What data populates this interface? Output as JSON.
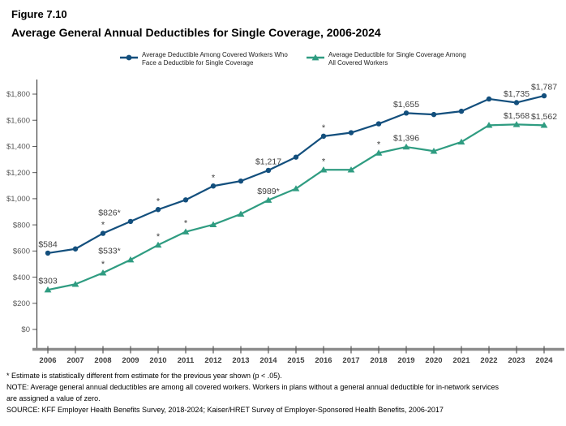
{
  "figure_label": "Figure 7.10",
  "title": "Average General Annual Deductibles for Single Coverage, 2006-2024",
  "colors": {
    "faced_series": "#134F7D",
    "all_series": "#2F9C81",
    "axis_bar": "#8C8C8C",
    "tick_text": "#595959",
    "year_text": "#404040",
    "data_label": "#404040"
  },
  "legend": [
    {
      "key": "faced",
      "label": "Average Deductible Among Covered Workers Who\nFace a Deductible for Single Coverage",
      "color": "#134F7D",
      "marker": "circle"
    },
    {
      "key": "all",
      "label": "Average Deductible for Single Coverage Among\nAll Covered Workers",
      "color": "#2F9C81",
      "marker": "triangle"
    }
  ],
  "chart_data": {
    "type": "line",
    "title": "Average General Annual Deductibles for Single Coverage, 2006-2024",
    "x": [
      2006,
      2007,
      2008,
      2009,
      2010,
      2011,
      2012,
      2013,
      2014,
      2015,
      2016,
      2017,
      2018,
      2019,
      2020,
      2021,
      2022,
      2023,
      2024
    ],
    "x_tick_labels": [
      "2006",
      "2007",
      "2008",
      "2009",
      "2010",
      "2011",
      "2012",
      "2013",
      "2014",
      "2015",
      "2016",
      "2017",
      "2018",
      "2019",
      "2020",
      "2021",
      "2022",
      "2023",
      "2024"
    ],
    "y_axis": {
      "min": 0,
      "max": 1800,
      "step": 200
    },
    "y_tick_labels": [
      "$0",
      "$200",
      "$400",
      "$600",
      "$800",
      "$1,000",
      "$1,200",
      "$1,400",
      "$1,600",
      "$1,800"
    ],
    "grid": "off",
    "legend_position": "top-center",
    "series": [
      {
        "key": "faced",
        "name": "Average Deductible Among Covered Workers Who Face a Deductible for Single Coverage",
        "color": "#134F7D",
        "marker": "circle",
        "values": [
          584,
          616,
          735,
          826,
          917,
          991,
          1097,
          1135,
          1217,
          1318,
          1478,
          1505,
          1573,
          1655,
          1644,
          1669,
          1763,
          1735,
          1787
        ]
      },
      {
        "key": "all",
        "name": "Average Deductible for Single Coverage Among All Covered Workers",
        "color": "#2F9C81",
        "marker": "triangle",
        "values": [
          303,
          346,
          433,
          533,
          646,
          747,
          802,
          883,
          989,
          1077,
          1221,
          1221,
          1350,
          1396,
          1364,
          1434,
          1562,
          1568,
          1562
        ]
      }
    ],
    "point_labels": [
      {
        "series": "faced",
        "year": 2006,
        "text": "$584",
        "dx": 0
      },
      {
        "series": "faced",
        "year": 2009,
        "text": "$826*",
        "dx": -26
      },
      {
        "series": "faced",
        "year": 2014,
        "text": "$1,217",
        "dx": 0
      },
      {
        "series": "faced",
        "year": 2019,
        "text": "$1,655",
        "dx": 0
      },
      {
        "series": "faced",
        "year": 2023,
        "text": "$1,735",
        "dx": 0
      },
      {
        "series": "faced",
        "year": 2024,
        "text": "$1,787",
        "dx": 0
      },
      {
        "series": "all",
        "year": 2006,
        "text": "$303",
        "dx": 0
      },
      {
        "series": "all",
        "year": 2009,
        "text": "$533*",
        "dx": -26
      },
      {
        "series": "all",
        "year": 2014,
        "text": "$989*",
        "dx": 0
      },
      {
        "series": "all",
        "year": 2019,
        "text": "$1,396",
        "dx": 0
      },
      {
        "series": "all",
        "year": 2023,
        "text": "$1,568",
        "dx": 0
      },
      {
        "series": "all",
        "year": 2024,
        "text": "$1,562",
        "dx": 0
      }
    ],
    "significance_asterisks": [
      {
        "series": "faced",
        "years": [
          2008,
          2010,
          2012,
          2016
        ]
      },
      {
        "series": "all",
        "years": [
          2008,
          2010,
          2011,
          2016,
          2018
        ]
      }
    ]
  },
  "footnotes": [
    "* Estimate is statistically different from estimate for the previous year shown (p < .05).",
    "NOTE: Average general annual deductibles are among all covered workers. Workers in plans without a general annual deductible for in-network services",
    "are assigned a value of zero.",
    "SOURCE: KFF Employer Health Benefits Survey, 2018-2024; Kaiser/HRET Survey of Employer-Sponsored Health Benefits, 2006-2017"
  ]
}
